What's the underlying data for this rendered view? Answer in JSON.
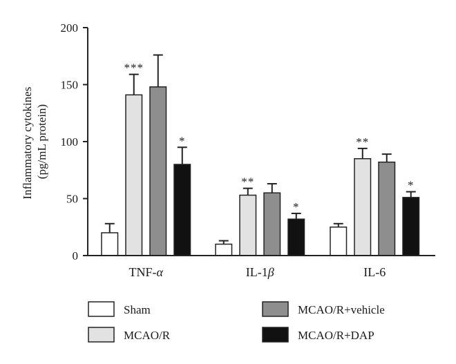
{
  "chart_data": {
    "type": "bar",
    "ylabel": "Inflammatory cytokines",
    "ylabel_units": "(pg/mL protein)",
    "ylim": [
      0,
      200
    ],
    "yticks": [
      0,
      50,
      100,
      150,
      200
    ],
    "categories": [
      {
        "prefix": "TNF-",
        "symbol": "α"
      },
      {
        "prefix": "IL-1",
        "symbol": "β"
      },
      {
        "prefix": "IL-6",
        "symbol": ""
      }
    ],
    "series": [
      {
        "name": "Sham",
        "color": "#ffffff",
        "values": [
          20,
          10,
          25
        ],
        "errors": [
          8,
          3,
          3
        ],
        "sig": [
          "",
          "",
          ""
        ]
      },
      {
        "name": "MCAO/R",
        "color": "#e2e2e2",
        "values": [
          141,
          53,
          85
        ],
        "errors": [
          18,
          6,
          9
        ],
        "sig": [
          "***",
          "**",
          "**"
        ]
      },
      {
        "name": "MCAO/R+vehicle",
        "color": "#8e8e8e",
        "values": [
          148,
          55,
          82
        ],
        "errors": [
          28,
          8,
          7
        ],
        "sig": [
          "",
          "",
          ""
        ]
      },
      {
        "name": "MCAO/R+DAP",
        "color": "#111111",
        "values": [
          80,
          32,
          51
        ],
        "errors": [
          15,
          5,
          5
        ],
        "sig": [
          "*",
          "*",
          "*"
        ]
      }
    ]
  }
}
